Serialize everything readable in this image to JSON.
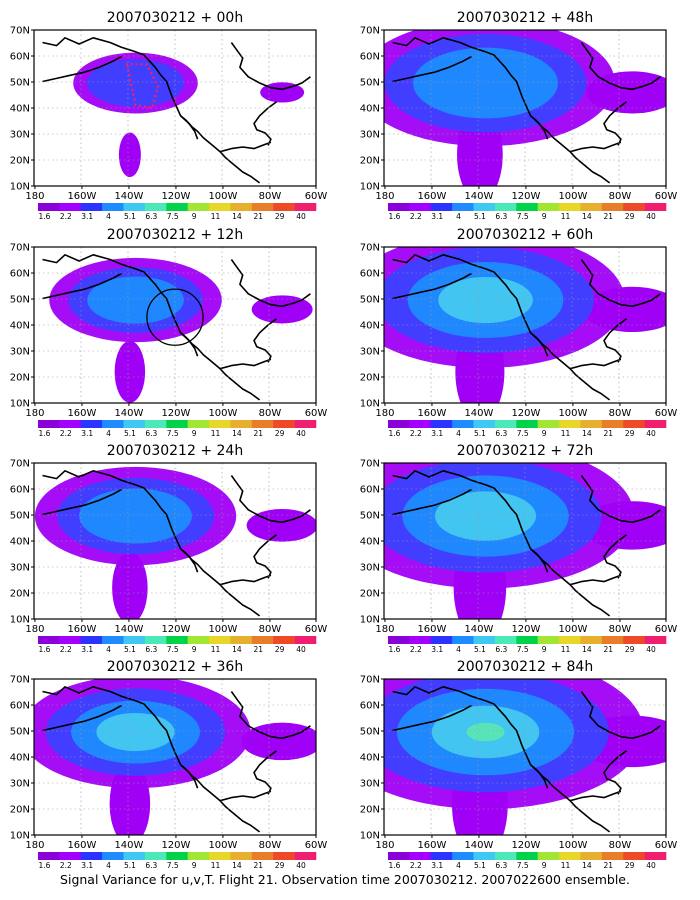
{
  "colors": {
    "colorbar": [
      "#8a00d9",
      "#a300ff",
      "#2b33ff",
      "#1e8cff",
      "#3fc8f2",
      "#4ce8b8",
      "#00d24a",
      "#a0e632",
      "#e6d729",
      "#e6af2d",
      "#e87d2a",
      "#ef4a28",
      "#f01e6e"
    ],
    "bands": [
      "#a000f5",
      "#3c41ff",
      "#1e8cff",
      "#46c8f0",
      "#5ae6b4"
    ],
    "crosssection_track": "#ff1e5a"
  },
  "colorbar_labels": [
    "1.6",
    "2.2",
    "3.1",
    "4",
    "5.1",
    "6.3",
    "7.5",
    "9",
    "11",
    "14",
    "21",
    "29",
    "40"
  ],
  "x_tick_labels": [
    "180",
    "160W",
    "140W",
    "120W",
    "100W",
    "80W",
    "60W"
  ],
  "y_tick_labels": [
    "10N",
    "20N",
    "30N",
    "40N",
    "50N",
    "60N",
    "70N"
  ],
  "caption": "Signal Variance for u,v,T. Flight 21. Observation time 2007030212. 2007022600 ensemble.",
  "panels": [
    {
      "title": "2007030212 + 00h",
      "spread": 0.65,
      "level": 2,
      "track": true,
      "circle": false
    },
    {
      "title": "2007030212 + 48h",
      "spread": 1.35,
      "level": 3,
      "track": false,
      "circle": false
    },
    {
      "title": "2007030212 + 12h",
      "spread": 0.9,
      "level": 3,
      "track": false,
      "circle": true
    },
    {
      "title": "2007030212 + 60h",
      "spread": 1.45,
      "level": 4,
      "track": false,
      "circle": false
    },
    {
      "title": "2007030212 + 24h",
      "spread": 1.05,
      "level": 3,
      "track": false,
      "circle": false
    },
    {
      "title": "2007030212 + 72h",
      "spread": 1.55,
      "level": 4,
      "track": false,
      "circle": false
    },
    {
      "title": "2007030212 + 36h",
      "spread": 1.2,
      "level": 4,
      "track": false,
      "circle": false
    },
    {
      "title": "2007030212 + 84h",
      "spread": 1.65,
      "level": 5,
      "track": false,
      "circle": false
    }
  ]
}
